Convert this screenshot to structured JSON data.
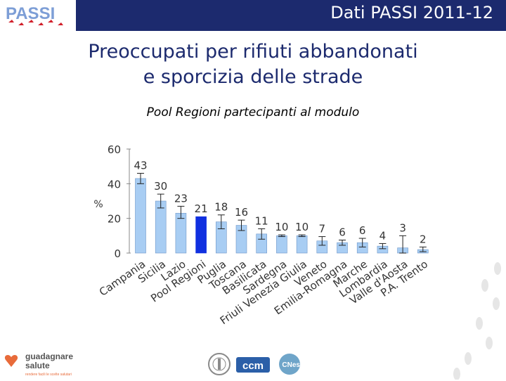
{
  "header": {
    "title": "Dati PASSI 2011-12",
    "logo_text": "PASSI"
  },
  "main": {
    "title_line1": "Preoccupati per rifiuti abbandonati",
    "title_line2": "e sporcizia delle strade",
    "subtitle": "Pool Regioni partecipanti al modulo"
  },
  "chart_data": {
    "type": "bar",
    "ylabel": "%",
    "ylim": [
      0,
      60
    ],
    "yticks": [
      0,
      20,
      40,
      60
    ],
    "categories": [
      "Campania",
      "Sicilia",
      "Lazio",
      "Pool Regioni",
      "Puglia",
      "Toscana",
      "Basilicata",
      "Sardegna",
      "Friuli Venezia Giulia",
      "Veneto",
      "Emilia-Romagna",
      "Marche",
      "Lombardia",
      "Valle d'Aosta",
      "P.A. Trento"
    ],
    "values": [
      43,
      30,
      23,
      21,
      18,
      16,
      11,
      10,
      10,
      7,
      6,
      6,
      4,
      3,
      2
    ],
    "value_labels": [
      "43",
      "30",
      "23",
      "21",
      "18",
      "16",
      "11",
      "10",
      "10",
      "7",
      "6",
      "6",
      "4",
      "3",
      "2"
    ],
    "ci_low": [
      40,
      26,
      20,
      null,
      14,
      13,
      8,
      9.5,
      9.5,
      4.5,
      4.5,
      3.5,
      2.5,
      0,
      0.8
    ],
    "ci_high": [
      46,
      34,
      27,
      null,
      22,
      19,
      14,
      10.5,
      10.5,
      9.5,
      7.5,
      8.5,
      5.5,
      10,
      3.5
    ],
    "highlight_index": 3,
    "colors": {
      "bar": "#a8cdf3",
      "highlight": "#1030e0",
      "bar_edge": "#6f96c8",
      "axis": "#888888",
      "text": "#333333"
    }
  },
  "footer": {
    "logo_guadagnare": "guadagnare",
    "logo_salute": "salute",
    "logo_tagline": "rendere facili le scelte salutari",
    "logo_ccm": "ccm",
    "logo_cnesps": "CNesps"
  }
}
